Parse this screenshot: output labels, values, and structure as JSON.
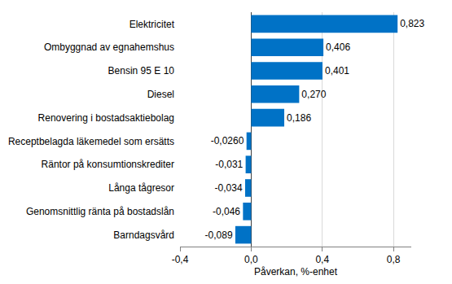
{
  "chart_data": {
    "type": "bar",
    "orientation": "horizontal",
    "x_label": "Påverkan, %-enhet",
    "categories": [
      "Elektricitet",
      "Ombyggnad av egnahemshus",
      "Bensin 95 E 10",
      "Diesel",
      "Renovering i bostadsaktiebolag",
      "Receptbelagda läkemedel som ersätts",
      "Räntor på konsumtionskrediter",
      "Långa tågresor",
      "Genomsnittlig ränta på bostadslån",
      "Barndagsvård"
    ],
    "values": [
      0.823,
      0.406,
      0.401,
      0.27,
      0.186,
      -0.026,
      -0.031,
      -0.034,
      -0.046,
      -0.089
    ],
    "value_labels": [
      "0,823",
      "0,406",
      "0,401",
      "0,270",
      "0,186",
      "-0,0260",
      "-0,031",
      "-0,034",
      "-0,046",
      "-0,089"
    ],
    "data_labels": true,
    "color": "#0072c6",
    "xlim": [
      -0.4,
      0.9
    ],
    "xticks": [
      {
        "value": -0.4,
        "label": "-0,4"
      },
      {
        "value": 0,
        "label": "0,0"
      },
      {
        "value": 0.4,
        "label": "0,4"
      },
      {
        "value": 0.8,
        "label": "0,8"
      }
    ],
    "grid": true
  }
}
